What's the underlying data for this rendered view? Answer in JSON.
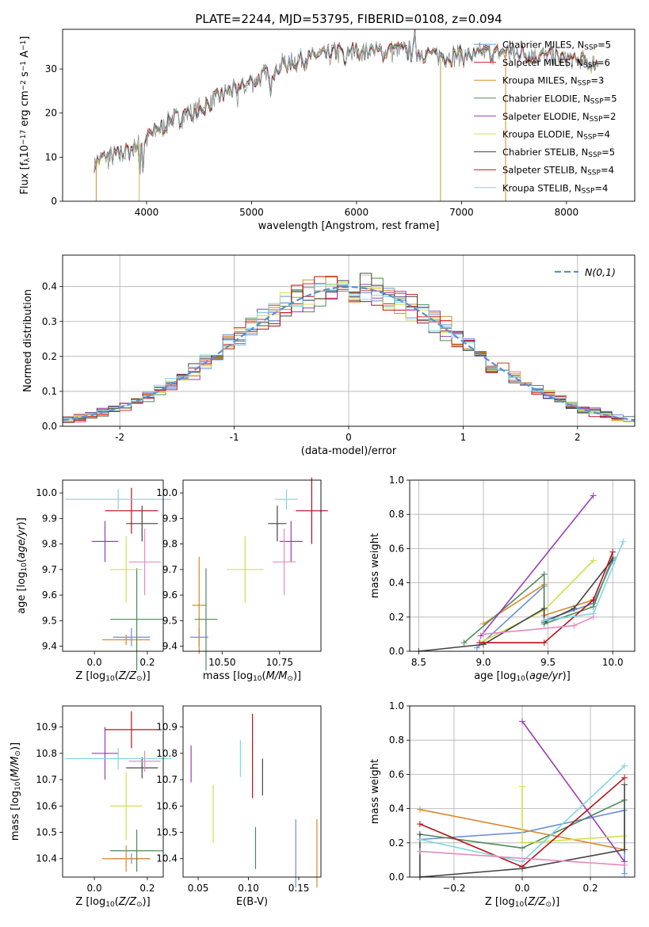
{
  "figure_title": "PLATE=2244, MJD=53795, FIBERID=0108, z=0.094",
  "chart_data": [
    {
      "id": "spectrum",
      "type": "line",
      "xlabel": "wavelength [Angstrom, rest frame]",
      "ylabel": "Flux [f_λ10^-17 erg cm^-2 s^-1 A^-1]",
      "xlim": [
        3200,
        8650
      ],
      "ylim": [
        0,
        39
      ],
      "xticks": [
        4000,
        5000,
        6000,
        7000,
        8000
      ],
      "yticks": [
        0,
        10,
        20,
        30
      ],
      "grid": false,
      "legend_position": "top-right",
      "continuum": {
        "x": [
          3500,
          3800,
          4000,
          4200,
          4500,
          4800,
          5000,
          5300,
          5600,
          5900,
          6200,
          6500,
          6800,
          7100,
          7400,
          7800,
          8300
        ],
        "y": [
          9,
          11,
          14,
          18,
          21,
          25,
          27,
          31,
          33,
          34,
          34,
          34,
          33,
          33,
          34,
          33,
          31
        ]
      },
      "data_x_range": [
        3500,
        8300
      ],
      "series": [
        {
          "name": "Chabrier MILES",
          "nssp": "5",
          "color": "#6a8fd6"
        },
        {
          "name": "Salpeter MILES",
          "nssp": "6",
          "color": "#d62728"
        },
        {
          "name": "Kroupa MILES",
          "nssp": "3",
          "color": "#d98a2b"
        },
        {
          "name": "Chabrier ELODIE",
          "nssp": "5",
          "color": "#4f8a5a"
        },
        {
          "name": "Salpeter ELODIE",
          "nssp": "2",
          "color": "#9a3fb5"
        },
        {
          "name": "Kroupa ELODIE",
          "nssp": "4",
          "color": "#cfe048"
        },
        {
          "name": "Chabrier STELIB",
          "nssp": "5",
          "color": "#444444"
        },
        {
          "name": "Salpeter STELIB",
          "nssp": "4",
          "color": "#b5121b"
        },
        {
          "name": "Kroupa STELIB",
          "nssp": "4",
          "color": "#7fd6e0"
        }
      ]
    },
    {
      "id": "residuals",
      "type": "step",
      "xlabel": "(data-model)/error",
      "ylabel": "Normed distribution",
      "xlim": [
        -2.5,
        2.5
      ],
      "ylim": [
        0,
        0.49
      ],
      "xticks": [
        -2,
        -1,
        0,
        1,
        2
      ],
      "yticks": [
        0.0,
        0.1,
        0.2,
        0.3,
        0.4
      ],
      "grid": true,
      "legend_position": "top-right",
      "legend_label": "N(0,1)",
      "bin_width": 0.1,
      "histogram_count": 9
    },
    {
      "id": "age_vs_Z",
      "type": "errorbar",
      "xlabel": "Z [log10(Z/Z⊙)]",
      "ylabel": "age [log10(age/yr)]",
      "xlim": [
        -0.12,
        0.26
      ],
      "ylim": [
        9.38,
        10.05
      ],
      "xticks": [
        0.0,
        0.2
      ],
      "xtick_labels": [
        "0.0",
        "0.2"
      ],
      "yticks": [
        9.4,
        9.5,
        9.6,
        9.7,
        9.8,
        9.9,
        10.0
      ],
      "points": [
        {
          "color": "#6a8fd6",
          "x": 0.14,
          "xerr": 0.07,
          "y": 9.435,
          "yerr": 0.035
        },
        {
          "color": "#d98a2b",
          "x": 0.12,
          "xerr": 0.09,
          "y": 9.425,
          "yerr": 0.02
        },
        {
          "color": "#4f8a5a",
          "x": 0.16,
          "xerr": 0.1,
          "y": 9.505,
          "yerr": 0.2
        },
        {
          "color": "#9a3fb5",
          "x": 0.04,
          "xerr": 0.05,
          "y": 9.81,
          "yerr": 0.08
        },
        {
          "color": "#cfe048",
          "x": 0.12,
          "xerr": 0.06,
          "y": 9.7,
          "yerr": 0.13
        },
        {
          "color": "#444444",
          "x": 0.18,
          "xerr": 0.06,
          "y": 9.88,
          "yerr": 0.07
        },
        {
          "color": "#b5121b",
          "x": 0.14,
          "xerr": 0.1,
          "y": 9.93,
          "yerr": 0.09
        },
        {
          "color": "#7fd6e0",
          "x": 0.09,
          "xerr": 0.2,
          "y": 9.975,
          "yerr": 0.04
        },
        {
          "color": "#e48bbd",
          "x": 0.19,
          "xerr": 0.06,
          "y": 9.73,
          "yerr": 0.13
        }
      ]
    },
    {
      "id": "age_vs_mass",
      "type": "errorbar",
      "xlabel": "mass [log10(M/M⊙)]",
      "xlim": [
        10.33,
        10.93
      ],
      "ylim": [
        9.38,
        10.05
      ],
      "xticks": [
        10.5,
        10.75
      ],
      "xtick_labels": [
        "10.50",
        "10.75"
      ],
      "yticks": [
        9.4,
        9.5,
        9.6,
        9.7,
        9.8,
        9.9,
        10.0
      ],
      "points": [
        {
          "color": "#6a8fd6",
          "x": 10.4,
          "xerr": 0.04,
          "y": 9.435,
          "yerr": 0.035
        },
        {
          "color": "#d98a2b",
          "x": 10.4,
          "xerr": 0.03,
          "y": 9.56,
          "yerr": 0.19
        },
        {
          "color": "#4f8a5a",
          "x": 10.43,
          "xerr": 0.05,
          "y": 9.505,
          "yerr": 0.2
        },
        {
          "color": "#9a3fb5",
          "x": 10.8,
          "xerr": 0.05,
          "y": 9.81,
          "yerr": 0.08
        },
        {
          "color": "#cfe048",
          "x": 10.6,
          "xerr": 0.08,
          "y": 9.7,
          "yerr": 0.13
        },
        {
          "color": "#444444",
          "x": 10.74,
          "xerr": 0.04,
          "y": 9.88,
          "yerr": 0.07
        },
        {
          "color": "#b5121b",
          "x": 10.89,
          "xerr": 0.07,
          "y": 9.93,
          "yerr": 0.13
        },
        {
          "color": "#7fd6e0",
          "x": 10.78,
          "xerr": 0.05,
          "y": 9.975,
          "yerr": 0.04
        },
        {
          "color": "#e48bbd",
          "x": 10.77,
          "xerr": 0.05,
          "y": 9.73,
          "yerr": 0.13
        }
      ]
    },
    {
      "id": "massweight_vs_age",
      "type": "line",
      "xlabel": "age [log10(age/yr)]",
      "ylabel": "mass weight",
      "xlim": [
        8.43,
        10.17
      ],
      "ylim": [
        0,
        1
      ],
      "xticks": [
        8.5,
        9.0,
        9.5,
        10.0
      ],
      "xtick_labels": [
        "8.5",
        "9.0",
        "9.5",
        "10.0"
      ],
      "yticks": [
        0.0,
        0.2,
        0.4,
        0.6,
        0.8,
        1.0
      ],
      "grid": true,
      "series": [
        {
          "color": "#6a8fd6",
          "x": [
            8.95,
            9.47,
            9.47,
            9.85,
            10.0
          ],
          "y": [
            0.02,
            0.38,
            0.18,
            0.28,
            0.53
          ]
        },
        {
          "color": "#d98a2b",
          "x": [
            9.0,
            9.47,
            9.47,
            9.85
          ],
          "y": [
            0.16,
            0.39,
            0.21,
            0.3
          ]
        },
        {
          "color": "#4f8a5a",
          "x": [
            8.85,
            9.47,
            9.47,
            9.85,
            10.0
          ],
          "y": [
            0.05,
            0.45,
            0.16,
            0.26,
            0.55
          ]
        },
        {
          "color": "#9a3fb5",
          "x": [
            8.98,
            9.85
          ],
          "y": [
            0.09,
            0.91
          ]
        },
        {
          "color": "#cfe048",
          "x": [
            9.0,
            9.47,
            9.85
          ],
          "y": [
            0.06,
            0.24,
            0.53
          ]
        },
        {
          "color": "#444444",
          "x": [
            8.5,
            9.0,
            9.47,
            9.47,
            9.7,
            10.0
          ],
          "y": [
            0.0,
            0.04,
            0.25,
            0.17,
            0.25,
            0.54
          ]
        },
        {
          "color": "#b5121b",
          "x": [
            8.97,
            9.47,
            9.85,
            10.0
          ],
          "y": [
            0.05,
            0.05,
            0.3,
            0.58
          ]
        },
        {
          "color": "#7fd6e0",
          "x": [
            9.47,
            9.85,
            10.08
          ],
          "y": [
            0.18,
            0.22,
            0.64
          ]
        },
        {
          "color": "#e48bbd",
          "x": [
            9.0,
            9.7,
            9.85
          ],
          "y": [
            0.1,
            0.15,
            0.2
          ]
        }
      ]
    },
    {
      "id": "mass_vs_Z",
      "type": "errorbar",
      "xlabel": "Z [log10(Z/Z⊙)]",
      "ylabel": "mass [log10(M/M⊙)]",
      "xlim": [
        -0.12,
        0.26
      ],
      "ylim": [
        10.33,
        10.98
      ],
      "xticks": [
        0.0,
        0.2
      ],
      "xtick_labels": [
        "0.0",
        "0.2"
      ],
      "yticks": [
        10.4,
        10.5,
        10.6,
        10.7,
        10.8,
        10.9
      ],
      "points": [
        {
          "color": "#6a8fd6",
          "x": 0.14,
          "xerr": 0.07,
          "y": 10.4,
          "yerr": 0.02
        },
        {
          "color": "#d98a2b",
          "x": 0.12,
          "xerr": 0.09,
          "y": 10.4,
          "yerr": 0.05
        },
        {
          "color": "#4f8a5a",
          "x": 0.16,
          "xerr": 0.1,
          "y": 10.43,
          "yerr": 0.08
        },
        {
          "color": "#9a3fb5",
          "x": 0.04,
          "xerr": 0.05,
          "y": 10.8,
          "yerr": 0.1
        },
        {
          "color": "#cfe048",
          "x": 0.12,
          "xerr": 0.06,
          "y": 10.6,
          "yerr": 0.13
        },
        {
          "color": "#444444",
          "x": 0.18,
          "xerr": 0.06,
          "y": 10.745,
          "yerr": 0.04
        },
        {
          "color": "#b5121b",
          "x": 0.14,
          "xerr": 0.1,
          "y": 10.89,
          "yerr": 0.07
        },
        {
          "color": "#7fd6e0",
          "x": 0.09,
          "xerr": 0.2,
          "y": 10.78,
          "yerr": 0.04
        },
        {
          "color": "#e48bbd",
          "x": 0.19,
          "xerr": 0.06,
          "y": 10.77,
          "yerr": 0.04
        }
      ]
    },
    {
      "id": "mass_vs_ebv",
      "type": "errorbar",
      "xlabel": "E(B-V)",
      "xlim": [
        0.035,
        0.172
      ],
      "ylim": [
        10.33,
        10.98
      ],
      "xticks": [
        0.05,
        0.1,
        0.15
      ],
      "xtick_labels": [
        "0.05",
        "0.10",
        "0.15"
      ],
      "yticks": [
        10.4,
        10.5,
        10.6,
        10.7,
        10.8,
        10.9
      ],
      "points": [
        {
          "color": "#9a3fb5",
          "x": 0.043,
          "y": 10.76,
          "yerr": 0.07
        },
        {
          "color": "#cfe048",
          "x": 0.065,
          "y": 10.57,
          "yerr": 0.11
        },
        {
          "color": "#7fd6e0",
          "x": 0.092,
          "y": 10.78,
          "yerr": 0.07
        },
        {
          "color": "#b5121b",
          "x": 0.104,
          "y": 10.79,
          "yerr": 0.16
        },
        {
          "color": "#4f8a5a",
          "x": 0.107,
          "y": 10.44,
          "yerr": 0.08
        },
        {
          "color": "#444444",
          "x": 0.114,
          "y": 10.71,
          "yerr": 0.07
        },
        {
          "color": "#6a8fd6",
          "x": 0.147,
          "y": 10.42,
          "yerr": 0.13
        },
        {
          "color": "#d98a2b",
          "x": 0.168,
          "y": 10.42,
          "yerr": 0.13
        }
      ]
    },
    {
      "id": "massweight_vs_Z",
      "type": "line",
      "xlabel": "Z [log10(Z/Z⊙)]",
      "ylabel": "mass weight",
      "xlim": [
        -0.33,
        0.33
      ],
      "ylim": [
        0,
        1
      ],
      "xticks": [
        -0.2,
        0.0,
        0.2
      ],
      "xtick_labels": [
        "−0.2",
        "0.0",
        "0.2"
      ],
      "yticks": [
        0.0,
        0.2,
        0.4,
        0.6,
        0.8,
        1.0
      ],
      "grid": true,
      "series": [
        {
          "color": "#6a8fd6",
          "x": [
            -0.3,
            0.0,
            0.3,
            0.3
          ],
          "y": [
            0.22,
            0.26,
            0.39,
            0.02
          ]
        },
        {
          "color": "#d98a2b",
          "x": [
            -0.3,
            0.3
          ],
          "y": [
            0.395,
            0.16
          ]
        },
        {
          "color": "#4f8a5a",
          "x": [
            -0.3,
            0.0,
            0.3
          ],
          "y": [
            0.25,
            0.17,
            0.45
          ]
        },
        {
          "color": "#9a3fb5",
          "x": [
            0.0,
            0.3
          ],
          "y": [
            0.91,
            0.09
          ]
        },
        {
          "color": "#cfe048",
          "x": [
            0.0,
            0.0,
            0.3
          ],
          "y": [
            0.53,
            0.2,
            0.24
          ]
        },
        {
          "color": "#444444",
          "x": [
            -0.3,
            -0.3,
            0.0,
            0.3,
            0.3
          ],
          "y": [
            0.25,
            0.0,
            0.05,
            0.16,
            0.54
          ]
        },
        {
          "color": "#b5121b",
          "x": [
            -0.3,
            0.0,
            0.3
          ],
          "y": [
            0.31,
            0.06,
            0.58
          ]
        },
        {
          "color": "#7fd6e0",
          "x": [
            -0.3,
            0.0,
            0.3
          ],
          "y": [
            0.22,
            0.09,
            0.65
          ]
        },
        {
          "color": "#e48bbd",
          "x": [
            -0.3,
            0.3
          ],
          "y": [
            0.15,
            0.07
          ]
        }
      ]
    }
  ]
}
